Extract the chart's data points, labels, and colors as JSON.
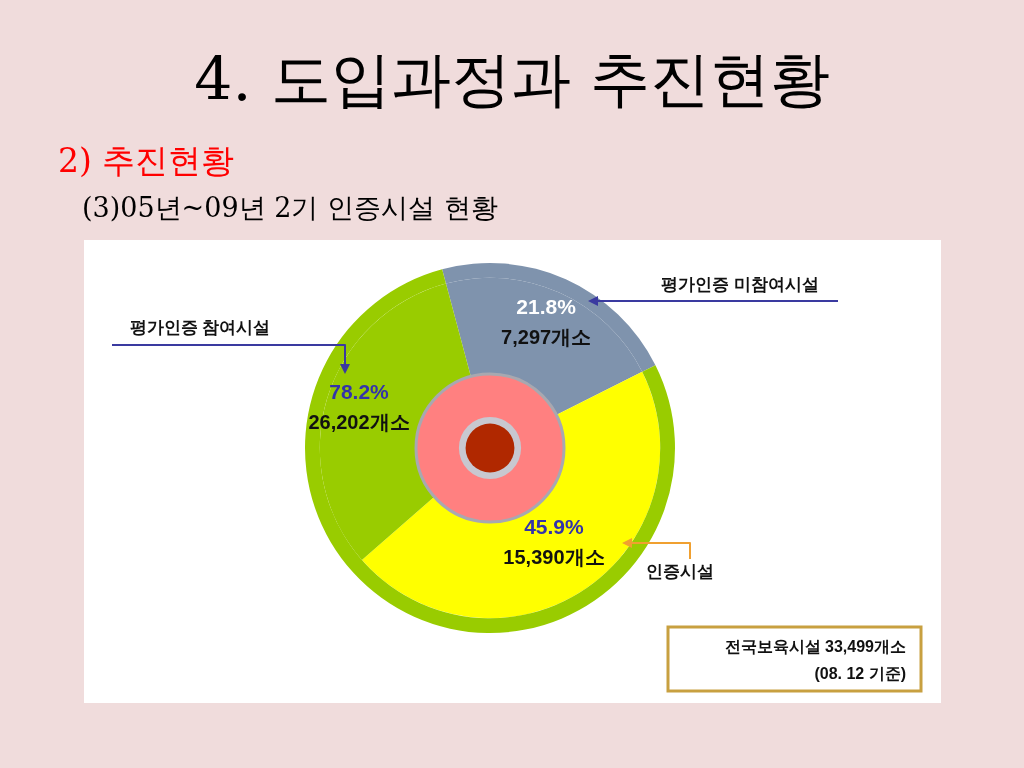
{
  "chart_data": {
    "type": "donut",
    "title": "4. 도입과정과 추진현황",
    "subtitle": "2) 추진현황",
    "categories": [
      "평가인증 미참여시설",
      "인증시설",
      "평가인증 참여시설"
    ],
    "series": [
      {
        "values": [
          7297,
          15390,
          10812
        ],
        "colors": [
          "#7f93ad",
          "#ffff00",
          "#99cc00"
        ],
        "value_labels": [
          null,
          "45.9%\n15,390개소",
          null
        ]
      },
      {
        "values": [
          7297,
          null,
          26202
        ],
        "colors": [
          "#7f93ad",
          null,
          "#99cc00"
        ],
        "value_labels": [
          "21.8%\n7,297개소",
          null,
          "78.2%\n26,202개소"
        ]
      }
    ],
    "annotations": [
      "(3)05년~09년 2기 인증시설 현황",
      "전국보육시설 33,499개소\n(08. 12 기준)"
    ]
  }
}
